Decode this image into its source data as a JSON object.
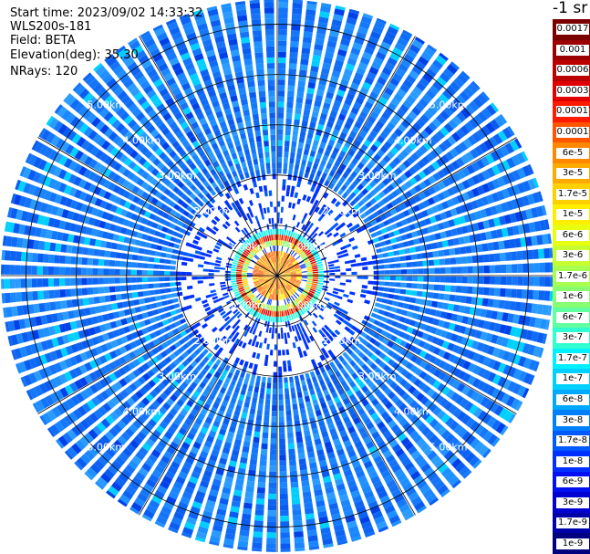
{
  "header": {
    "start_time": "Start time: 2023/09/02 14:33:32",
    "instrument": "WLS200s-181",
    "field": "Field: BETA",
    "elevation": "Elevation(deg): 35.30",
    "nrays": "NRays: 120"
  },
  "colorbar": {
    "unit_label": "-1 sr",
    "labels": [
      "0.0017",
      "0.001",
      "0.0006",
      "0.0003",
      "0.00017",
      "0.0001",
      "6e-5",
      "3e-5",
      "1.7e-5",
      "1e-5",
      "6e-6",
      "3e-6",
      "1.7e-6",
      "1e-6",
      "6e-7",
      "3e-7",
      "1.7e-7",
      "1e-7",
      "6e-8",
      "3e-8",
      "1.7e-8",
      "1e-8",
      "6e-9",
      "3e-9",
      "1.7e-9",
      "1e-9"
    ],
    "colors": [
      "#7a0000",
      "#9a0000",
      "#bb0000",
      "#e00000",
      "#ff1a00",
      "#ff5500",
      "#ff8800",
      "#ffaa00",
      "#ffd000",
      "#ffee00",
      "#e8ff10",
      "#c8ff30",
      "#a8ff50",
      "#88ff70",
      "#60ffa0",
      "#30ffd0",
      "#00f0ff",
      "#00d0ff",
      "#00a8ff",
      "#0080ff",
      "#0058ff",
      "#0030ff",
      "#0010f0",
      "#0000d0",
      "#0000a8",
      "#000080"
    ]
  },
  "range_rings": {
    "labels": [
      "1.00km",
      "2.00km",
      "3.00km",
      "4.00km",
      "5.00km"
    ],
    "max_range_km": 5.5
  },
  "scan": {
    "n_rays": 120,
    "near_field_radius_km": 0.4,
    "high_beta_ring_km": [
      0.55,
      0.9
    ]
  }
}
